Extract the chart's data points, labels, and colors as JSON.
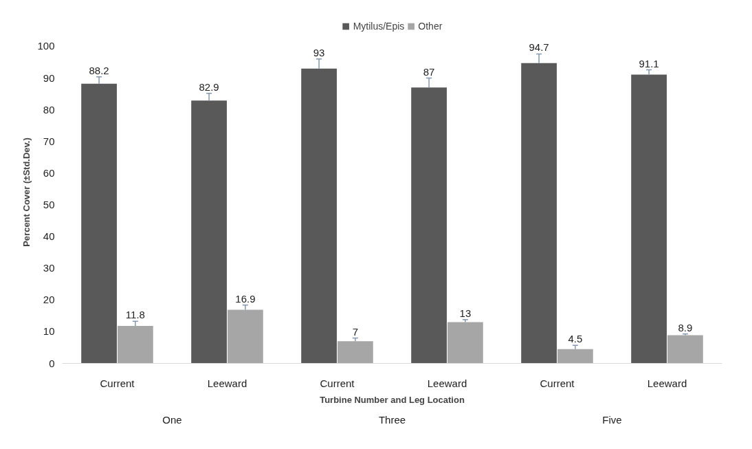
{
  "chart_data": {
    "type": "bar",
    "xlabel": "Turbine Number and Leg Location",
    "ylabel": "Percent Cover (±Std.Dev.)",
    "categories": [
      "Current",
      "Leeward",
      "Current",
      "Leeward",
      "Current",
      "Leeward"
    ],
    "annotations": [
      "One",
      "Three",
      "Five"
    ],
    "series": [
      {
        "name": "Mytilus/Epis",
        "color": "#595959",
        "values": [
          88.2,
          82.9,
          93,
          87,
          94.7,
          91.1
        ],
        "errors": [
          [
            88.2,
            90.4
          ],
          [
            82.9,
            85.2
          ],
          [
            93,
            96
          ],
          [
            87,
            90
          ],
          [
            94.7,
            97.6
          ],
          [
            91.1,
            92.6
          ]
        ]
      },
      {
        "name": "Other",
        "color": "#a6a6a6",
        "values": [
          11.8,
          16.9,
          7,
          13,
          4.5,
          8.9
        ],
        "errors": [
          [
            11.8,
            13.3
          ],
          [
            16.9,
            18.4
          ],
          [
            7,
            8
          ],
          [
            13,
            13.8
          ],
          [
            4.5,
            5.7
          ],
          [
            8.9,
            9.3
          ]
        ]
      }
    ],
    "ylim": [
      0,
      108
    ],
    "yticks": [
      0,
      10,
      20,
      30,
      40,
      50,
      60,
      70,
      80,
      90,
      100
    ],
    "data_labels": true,
    "legend": "top",
    "grid": false
  }
}
